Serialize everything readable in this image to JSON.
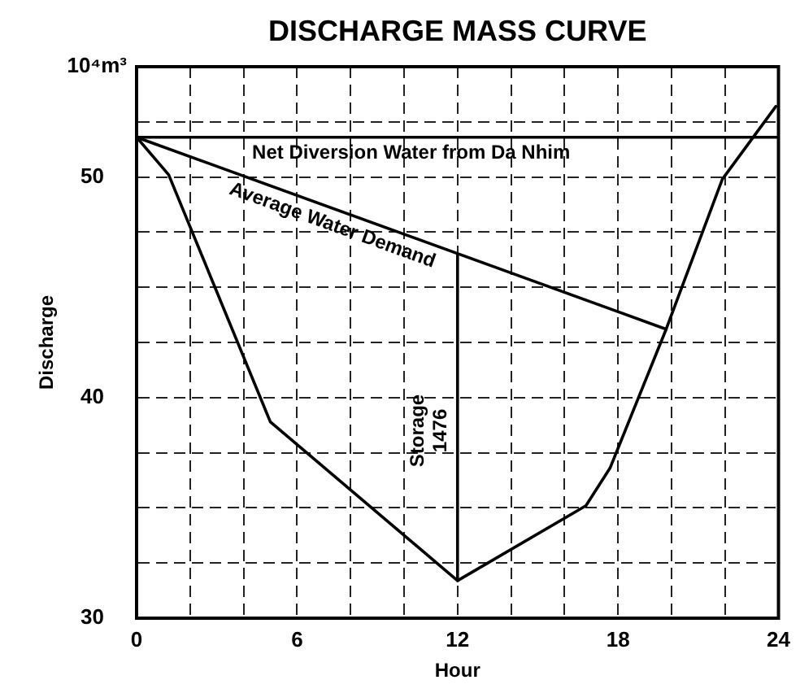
{
  "chart_data": {
    "type": "line",
    "title": "DISCHARGE MASS CURVE",
    "xlabel": "Hour",
    "ylabel": "Discharge",
    "xlim": [
      0,
      24
    ],
    "xticks": [
      0,
      {
        "value": 2,
        "label": null
      },
      {
        "value": 4,
        "label": null
      },
      6,
      {
        "value": 8,
        "label": null
      },
      {
        "value": 10,
        "label": null
      },
      12,
      {
        "value": 14,
        "label": null
      },
      {
        "value": 16,
        "label": null
      },
      18,
      {
        "value": 20,
        "label": null
      },
      {
        "value": 22,
        "label": null
      },
      24
    ],
    "ylim": [
      30,
      55
    ],
    "yticks": [
      30,
      {
        "value": 32.5,
        "label": null
      },
      {
        "value": 35,
        "label": null
      },
      {
        "value": 37.5,
        "label": null
      },
      40,
      {
        "value": 42.5,
        "label": null
      },
      {
        "value": 45,
        "label": null
      },
      {
        "value": 47.5,
        "label": null
      },
      50,
      {
        "value": 52.5,
        "label": null
      },
      {
        "value": 55,
        "label": null
      }
    ],
    "grid": true,
    "legend": false,
    "series": [
      {
        "name": "Net Diversion Water from Da Nhim",
        "color": "#000000",
        "x": [
          0,
          24
        ],
        "values": [
          51.8,
          51.8
        ]
      },
      {
        "name": "Average Water Demand",
        "color": "#000000",
        "x": [
          0,
          19.8
        ],
        "values": [
          51.8,
          43.1
        ]
      },
      {
        "color": "#000000",
        "x": [
          0,
          1.2,
          5,
          12,
          16.8,
          17.7,
          19.8,
          21.9,
          23.9
        ],
        "values": [
          51.8,
          50.1,
          38.9,
          31.7,
          35.1,
          36.8,
          43.1,
          49.9,
          53.2
        ]
      },
      {
        "color": "#000000",
        "x": [
          12,
          12
        ],
        "values": [
          31.7,
          46.5
        ]
      }
    ],
    "annotations": [
      "10⁴m³",
      {
        "text": "Storage 1476",
        "x": 12,
        "y": 38.5
      }
    ]
  }
}
